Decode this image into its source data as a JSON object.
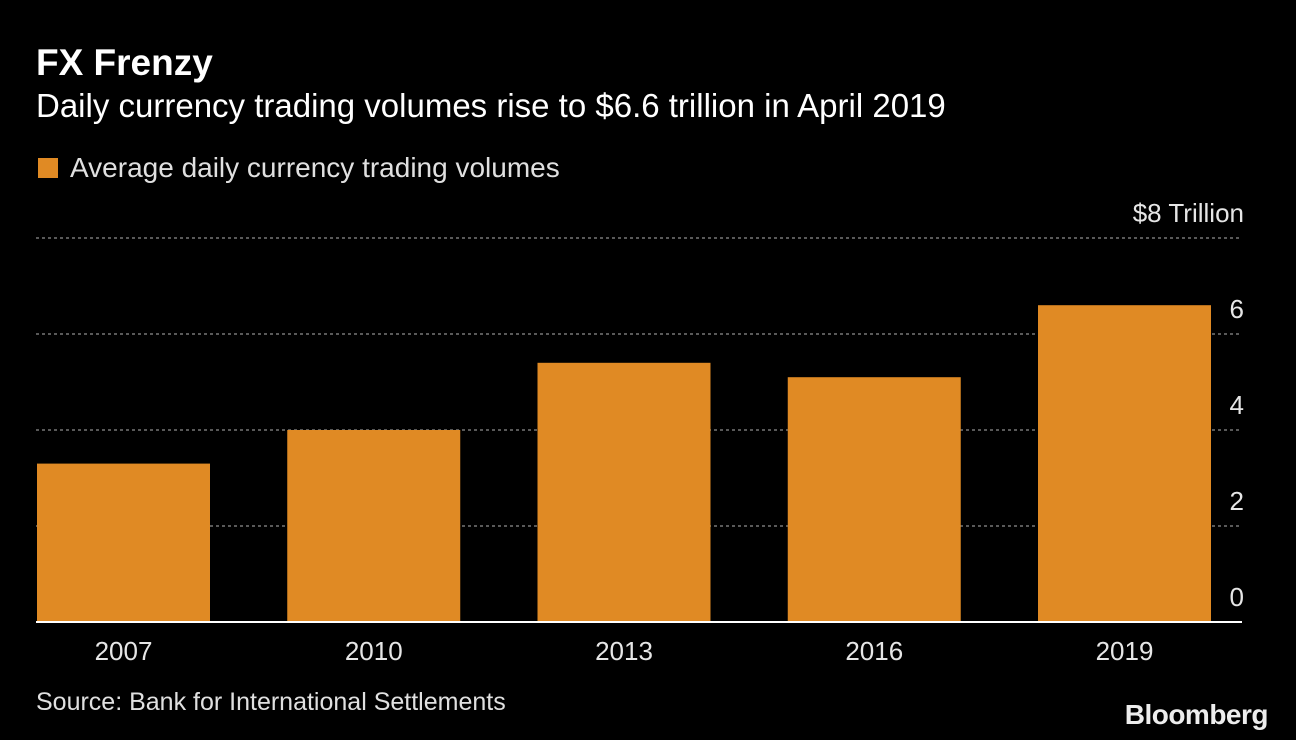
{
  "header": {
    "title": "FX Frenzy",
    "subtitle": "Daily currency trading volumes rise to $6.6 trillion in April 2019"
  },
  "legend": {
    "label": "Average daily currency trading volumes"
  },
  "footer": {
    "source": "Source: Bank for International Settlements",
    "brand": "Bloomberg"
  },
  "colors": {
    "background": "#000000",
    "bar": "#e08a24",
    "gridline": "#777777",
    "axis_text": "#e6e6e6",
    "baseline": "#ffffff"
  },
  "chart_data": {
    "type": "bar",
    "title": "FX Frenzy",
    "subtitle": "Daily currency trading volumes rise to $6.6 trillion in April 2019",
    "categories": [
      "2007",
      "2010",
      "2013",
      "2016",
      "2019"
    ],
    "series": [
      {
        "name": "Average daily currency trading volumes",
        "values": [
          3.3,
          4.0,
          5.4,
          5.1,
          6.6
        ]
      }
    ],
    "xlabel": "",
    "ylabel": "",
    "ylim": [
      0,
      8
    ],
    "y_ticks": [
      0,
      2,
      4,
      6,
      8
    ],
    "y_tick_labels": [
      "0",
      "2",
      "4",
      "6",
      "$8 Trillion"
    ],
    "y_axis_side": "right",
    "grid": true,
    "grid_style": "dotted",
    "legend_position": "top-left"
  }
}
